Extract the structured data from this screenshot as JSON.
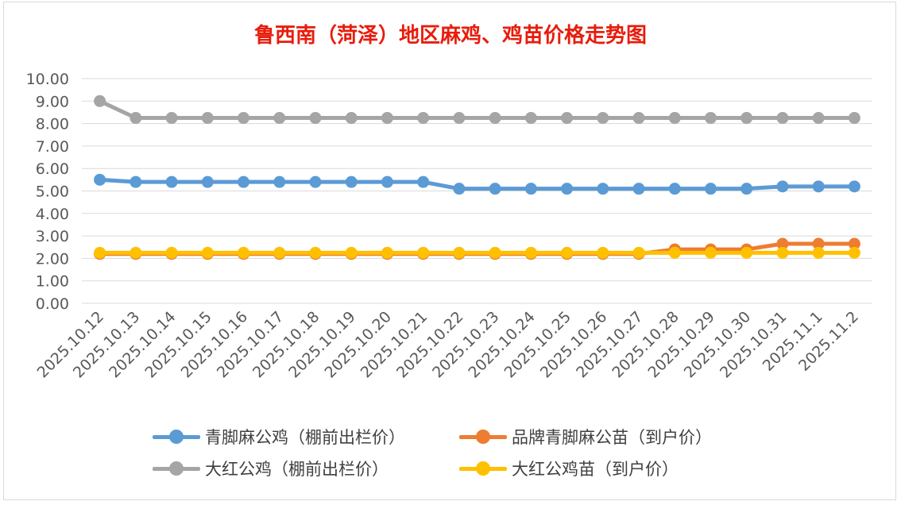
{
  "chart_data": {
    "type": "line",
    "title": "鲁西南（菏泽）地区麻鸡、鸡苗价格走势图",
    "categories": [
      "2025.10.12",
      "2025.10.13",
      "2025.10.14",
      "2025.10.15",
      "2025.10.16",
      "2025.10.17",
      "2025.10.18",
      "2025.10.19",
      "2025.10.20",
      "2025.10.21",
      "2025.10.22",
      "2025.10.23",
      "2025.10.24",
      "2025.10.25",
      "2025.10.26",
      "2025.10.27",
      "2025.10.28",
      "2025.10.29",
      "2025.10.30",
      "2025.10.31",
      "2025.11.1",
      "2025.11.2"
    ],
    "ylim": [
      0,
      10
    ],
    "y_ticks": [
      "0.00",
      "1.00",
      "2.00",
      "3.00",
      "4.00",
      "5.00",
      "6.00",
      "7.00",
      "8.00",
      "9.00",
      "10.00"
    ],
    "grid": true,
    "legend_position": "bottom",
    "series": [
      {
        "name": "青脚麻公鸡（棚前出栏价）",
        "color": "#5b9bd5",
        "values": [
          5.5,
          5.4,
          5.4,
          5.4,
          5.4,
          5.4,
          5.4,
          5.4,
          5.4,
          5.4,
          5.1,
          5.1,
          5.1,
          5.1,
          5.1,
          5.1,
          5.1,
          5.1,
          5.1,
          5.2,
          5.2,
          5.2
        ]
      },
      {
        "name": "品牌青脚麻公苗（到户价）",
        "color": "#ed7d31",
        "values": [
          2.2,
          2.2,
          2.2,
          2.2,
          2.2,
          2.2,
          2.2,
          2.2,
          2.2,
          2.2,
          2.2,
          2.2,
          2.2,
          2.2,
          2.2,
          2.2,
          2.4,
          2.4,
          2.4,
          2.65,
          2.65,
          2.65
        ]
      },
      {
        "name": "大红公鸡（棚前出栏价）",
        "color": "#a5a5a5",
        "values": [
          9.0,
          8.25,
          8.25,
          8.25,
          8.25,
          8.25,
          8.25,
          8.25,
          8.25,
          8.25,
          8.25,
          8.25,
          8.25,
          8.25,
          8.25,
          8.25,
          8.25,
          8.25,
          8.25,
          8.25,
          8.25,
          8.25
        ]
      },
      {
        "name": "大红公鸡苗（到户价）",
        "color": "#ffc000",
        "values": [
          2.25,
          2.25,
          2.25,
          2.25,
          2.25,
          2.25,
          2.25,
          2.25,
          2.25,
          2.25,
          2.25,
          2.25,
          2.25,
          2.25,
          2.25,
          2.25,
          2.25,
          2.25,
          2.25,
          2.25,
          2.25,
          2.25
        ]
      }
    ],
    "draw_order": [
      2,
      0,
      1,
      3
    ]
  }
}
